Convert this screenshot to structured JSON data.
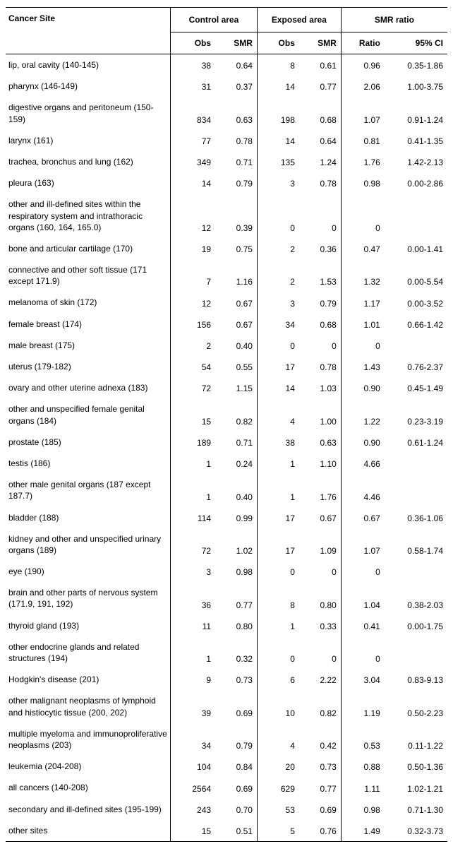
{
  "headers": {
    "site": "Cancer Site",
    "control": "Control area",
    "exposed": "Exposed area",
    "smr_ratio": "SMR ratio",
    "obs": "Obs",
    "smr": "SMR",
    "ratio": "Ratio",
    "ci": "95% CI"
  },
  "rows": [
    {
      "site": "lip, oral cavity (140-145)",
      "c_obs": "38",
      "c_smr": "0.64",
      "e_obs": "8",
      "e_smr": "0.61",
      "ratio": "0.96",
      "ci": "0.35-1.86"
    },
    {
      "site": "pharynx (146-149)",
      "c_obs": "31",
      "c_smr": "0.37",
      "e_obs": "14",
      "e_smr": "0.77",
      "ratio": "2.06",
      "ci": "1.00-3.75"
    },
    {
      "site": "digestive organs and peritoneum (150-159)",
      "c_obs": "834",
      "c_smr": "0.63",
      "e_obs": "198",
      "e_smr": "0.68",
      "ratio": "1.07",
      "ci": "0.91-1.24"
    },
    {
      "site": "larynx (161)",
      "c_obs": "77",
      "c_smr": "0.78",
      "e_obs": "14",
      "e_smr": "0.64",
      "ratio": "0.81",
      "ci": "0.41-1.35"
    },
    {
      "site": "trachea, bronchus and lung (162)",
      "c_obs": "349",
      "c_smr": "0.71",
      "e_obs": "135",
      "e_smr": "1.24",
      "ratio": "1.76",
      "ci": "1.42-2.13"
    },
    {
      "site": "pleura (163)",
      "c_obs": "14",
      "c_smr": "0.79",
      "e_obs": "3",
      "e_smr": "0.78",
      "ratio": "0.98",
      "ci": "0.00-2.86"
    },
    {
      "site": "other and ill-defined sites within the respiratory system and intrathoracic organs (160, 164, 165.0)",
      "c_obs": "12",
      "c_smr": "0.39",
      "e_obs": "0",
      "e_smr": "0",
      "ratio": "0",
      "ci": ""
    },
    {
      "site": "bone and articular cartilage (170)",
      "c_obs": "19",
      "c_smr": "0.75",
      "e_obs": "2",
      "e_smr": "0.36",
      "ratio": "0.47",
      "ci": "0.00-1.41"
    },
    {
      "site": "connective and other soft tissue (171 except 171.9)",
      "c_obs": "7",
      "c_smr": "1.16",
      "e_obs": "2",
      "e_smr": "1.53",
      "ratio": "1.32",
      "ci": "0.00-5.54"
    },
    {
      "site": "melanoma of skin (172)",
      "c_obs": "12",
      "c_smr": "0.67",
      "e_obs": "3",
      "e_smr": "0.79",
      "ratio": "1.17",
      "ci": "0.00-3.52"
    },
    {
      "site": "female breast (174)",
      "c_obs": "156",
      "c_smr": "0.67",
      "e_obs": "34",
      "e_smr": "0.68",
      "ratio": "1.01",
      "ci": "0.66-1.42"
    },
    {
      "site": "male breast (175)",
      "c_obs": "2",
      "c_smr": "0.40",
      "e_obs": "0",
      "e_smr": "0",
      "ratio": "0",
      "ci": ""
    },
    {
      "site": "uterus (179-182)",
      "c_obs": "54",
      "c_smr": "0.55",
      "e_obs": "17",
      "e_smr": "0.78",
      "ratio": "1.43",
      "ci": "0.76-2.37"
    },
    {
      "site": "ovary and other uterine adnexa (183)",
      "c_obs": "72",
      "c_smr": "1.15",
      "e_obs": "14",
      "e_smr": "1.03",
      "ratio": "0.90",
      "ci": "0.45-1.49"
    },
    {
      "site": "other and unspecified female genital organs (184)",
      "c_obs": "15",
      "c_smr": "0.82",
      "e_obs": "4",
      "e_smr": "1.00",
      "ratio": "1.22",
      "ci": "0.23-3.19"
    },
    {
      "site": "prostate (185)",
      "c_obs": "189",
      "c_smr": "0.71",
      "e_obs": "38",
      "e_smr": "0.63",
      "ratio": "0.90",
      "ci": "0.61-1.24"
    },
    {
      "site": "testis (186)",
      "c_obs": "1",
      "c_smr": "0.24",
      "e_obs": "1",
      "e_smr": "1.10",
      "ratio": "4.66",
      "ci": ""
    },
    {
      "site": "other male genital organs (187 except 187.7)",
      "c_obs": "1",
      "c_smr": "0.40",
      "e_obs": "1",
      "e_smr": "1.76",
      "ratio": "4.46",
      "ci": ""
    },
    {
      "site": "bladder (188)",
      "c_obs": "114",
      "c_smr": "0.99",
      "e_obs": "17",
      "e_smr": "0.67",
      "ratio": "0.67",
      "ci": "0.36-1.06"
    },
    {
      "site": "kidney and other and unspecified urinary organs (189)",
      "c_obs": "72",
      "c_smr": "1.02",
      "e_obs": "17",
      "e_smr": "1.09",
      "ratio": "1.07",
      "ci": "0.58-1.74"
    },
    {
      "site": "eye (190)",
      "c_obs": "3",
      "c_smr": "0.98",
      "e_obs": "0",
      "e_smr": "0",
      "ratio": "0",
      "ci": ""
    },
    {
      "site": "brain and other parts of nervous system (171.9, 191, 192)",
      "c_obs": "36",
      "c_smr": "0.77",
      "e_obs": "8",
      "e_smr": "0.80",
      "ratio": "1.04",
      "ci": "0.38-2.03"
    },
    {
      "site": "thyroid gland (193)",
      "c_obs": "11",
      "c_smr": "0.80",
      "e_obs": "1",
      "e_smr": "0.33",
      "ratio": "0.41",
      "ci": "0.00-1.75"
    },
    {
      "site": "other endocrine glands and related structures (194)",
      "c_obs": "1",
      "c_smr": "0.32",
      "e_obs": "0",
      "e_smr": "0",
      "ratio": "0",
      "ci": ""
    },
    {
      "site": "Hodgkin's disease (201)",
      "c_obs": "9",
      "c_smr": "0.73",
      "e_obs": "6",
      "e_smr": "2.22",
      "ratio": "3.04",
      "ci": "0.83-9.13"
    },
    {
      "site": "other malignant neoplasms of lymphoid and histiocytic tissue (200, 202)",
      "c_obs": "39",
      "c_smr": "0.69",
      "e_obs": "10",
      "e_smr": "0.82",
      "ratio": "1.19",
      "ci": "0.50-2.23"
    },
    {
      "site": "multiple myeloma and immunoproliferative neoplasms (203)",
      "c_obs": "34",
      "c_smr": "0.79",
      "e_obs": "4",
      "e_smr": "0.42",
      "ratio": "0.53",
      "ci": "0.11-1.22"
    },
    {
      "site": "leukemia (204-208)",
      "c_obs": "104",
      "c_smr": "0.84",
      "e_obs": "20",
      "e_smr": "0.73",
      "ratio": "0.88",
      "ci": "0.50-1.36"
    },
    {
      "site": "all cancers (140-208)",
      "c_obs": "2564",
      "c_smr": "0.69",
      "e_obs": "629",
      "e_smr": "0.77",
      "ratio": "1.11",
      "ci": "1.02-1.21"
    },
    {
      "site": "secondary and ill-defined sites (195-199)",
      "c_obs": "243",
      "c_smr": "0.70",
      "e_obs": "53",
      "e_smr": "0.69",
      "ratio": "0.98",
      "ci": "0.71-1.30"
    },
    {
      "site": "other sites",
      "c_obs": "15",
      "c_smr": "0.51",
      "e_obs": "5",
      "e_smr": "0.76",
      "ratio": "1.49",
      "ci": "0.32-3.73"
    }
  ]
}
